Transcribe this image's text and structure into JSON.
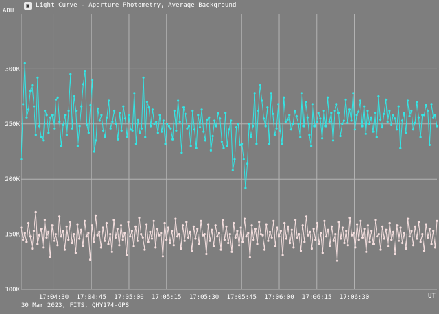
{
  "window": {
    "title": "Light Curve - Aperture Photometry, Average Background",
    "icon": "light-curve-app-icon",
    "icon_glyph": "▣"
  },
  "footer": {
    "caption": "30 Mar 2023, FITS, QHY174-GPS"
  },
  "colors": {
    "background": "#7e7e7e",
    "grid": "#b4b4b4",
    "series_target": "#33e6e6",
    "series_comparison": "#f4dede"
  },
  "chart_data": {
    "type": "line",
    "title": "Light Curve - Aperture Photometry, Average Background",
    "ylabel": "ADU",
    "xlabel": "UT",
    "ylim": [
      100000,
      350000
    ],
    "y_ticks": [
      {
        "value": 100000,
        "label": "100K"
      },
      {
        "value": 150000,
        "label": "150K"
      },
      {
        "value": 200000,
        "label": "200K"
      },
      {
        "value": 250000,
        "label": "250K"
      },
      {
        "value": 300000,
        "label": "300K"
      }
    ],
    "x_range": [
      "17:04:17",
      "17:07:03"
    ],
    "x_ticks": [
      "17:04:30",
      "17:04:45",
      "17:05:00",
      "17:05:15",
      "17:05:30",
      "17:05:45",
      "17:06:00",
      "17:06:15",
      "17:06:30"
    ],
    "grid": true,
    "legend": "none",
    "series": [
      {
        "color": "#33e6e6",
        "values": [
          218000,
          268000,
          305000,
          256000,
          263000,
          280000,
          285000,
          266000,
          240000,
          292000,
          248000,
          238000,
          235000,
          262000,
          258000,
          242000,
          256000,
          258000,
          246000,
          272000,
          274000,
          252000,
          230000,
          249000,
          258000,
          240000,
          262000,
          295000,
          246000,
          275000,
          262000,
          230000,
          248000,
          266000,
          286000,
          298000,
          249000,
          242000,
          267000,
          290000,
          225000,
          235000,
          264000,
          253000,
          258000,
          244000,
          238000,
          256000,
          271000,
          246000,
          252000,
          262000,
          250000,
          236000,
          260000,
          244000,
          266000,
          255000,
          238000,
          258000,
          245000,
          244000,
          278000,
          232000,
          254000,
          242000,
          246000,
          292000,
          238000,
          270000,
          265000,
          248000,
          263000,
          250000,
          252000,
          242000,
          258000,
          243000,
          253000,
          232000,
          250000,
          248000,
          246000,
          236000,
          262000,
          244000,
          271000,
          252000,
          224000,
          265000,
          259000,
          246000,
          248000,
          230000,
          262000,
          245000,
          228000,
          258000,
          247000,
          263000,
          243000,
          235000,
          254000,
          256000,
          226000,
          239000,
          253000,
          248000,
          260000,
          255000,
          234000,
          228000,
          260000,
          230000,
          245000,
          253000,
          208000,
          218000,
          247000,
          250000,
          231000,
          232000,
          218000,
          192000,
          214000,
          250000,
          238000,
          248000,
          278000,
          232000,
          262000,
          285000,
          271000,
          255000,
          248000,
          265000,
          232000,
          278000,
          259000,
          240000,
          246000,
          268000,
          244000,
          232000,
          274000,
          252000,
          254000,
          258000,
          245000,
          250000,
          262000,
          257000,
          250000,
          238000,
          278000,
          248000,
          270000,
          256000,
          240000,
          230000,
          268000,
          248000,
          252000,
          260000,
          255000,
          237000,
          262000,
          248000,
          274000,
          252000,
          260000,
          235000,
          262000,
          268000,
          260000,
          239000,
          250000,
          253000,
          272000,
          251000,
          263000,
          253000,
          278000,
          245000,
          258000,
          261000,
          271000,
          248000,
          266000,
          241000,
          262000,
          250000,
          256000,
          243000,
          260000,
          238000,
          275000,
          254000,
          247000,
          259000,
          272000,
          252000,
          262000,
          249000,
          258000,
          255000,
          245000,
          266000,
          228000,
          253000,
          260000,
          242000,
          271000,
          257000,
          262000,
          245000,
          251000,
          270000,
          256000,
          238000,
          258000,
          258000,
          267000,
          262000,
          231000,
          268000,
          256000,
          258000,
          248000
        ]
      },
      {
        "color": "#f4dede",
        "values": [
          156000,
          145000,
          151000,
          143000,
          160000,
          148000,
          137000,
          153000,
          170000,
          141000,
          149000,
          155000,
          138000,
          163000,
          147000,
          152000,
          129000,
          158000,
          144000,
          150000,
          140000,
          166000,
          148000,
          153000,
          136000,
          157000,
          145000,
          161000,
          142000,
          150000,
          133000,
          159000,
          146000,
          154000,
          139000,
          162000,
          148000,
          151000,
          127000,
          158000,
          143000,
          167000,
          149000,
          152000,
          138000,
          156000,
          144000,
          160000,
          141000,
          150000,
          134000,
          163000,
          147000,
          155000,
          140000,
          158000,
          145000,
          151000,
          131000,
          161000,
          148000,
          153000,
          139000,
          157000,
          144000,
          165000,
          150000,
          147000,
          136000,
          159000,
          143000,
          152000,
          146000,
          162000,
          138000,
          155000,
          149000,
          151000,
          130000,
          160000,
          145000,
          156000,
          142000,
          153000,
          140000,
          164000,
          148000,
          150000,
          137000,
          158000,
          144000,
          161000,
          147000,
          152000,
          135000,
          157000,
          146000,
          155000,
          141000,
          162000,
          149000,
          150000,
          132000,
          159000,
          144000,
          154000,
          139000,
          158000,
          148000,
          151000,
          136000,
          163000,
          145000,
          157000,
          142000,
          150000,
          134000,
          160000,
          147000,
          153000,
          140000,
          156000,
          143000,
          164000,
          148000,
          151000,
          129000,
          158000,
          145000,
          155000,
          141000,
          161000,
          150000,
          149000,
          136000,
          159000,
          144000,
          152000,
          147000,
          162000,
          139000,
          156000,
          148000,
          153000,
          131000,
          160000,
          146000,
          157000,
          142000,
          154000,
          138000,
          163000,
          147000,
          150000,
          135000,
          158000,
          143000,
          166000,
          149000,
          152000,
          137000,
          155000,
          145000,
          160000,
          141000,
          151000,
          133000,
          162000,
          148000,
          154000,
          139000,
          157000,
          144000,
          150000,
          126000,
          161000,
          146000,
          156000,
          142000,
          153000,
          140000,
          165000,
          149000,
          151000,
          138000,
          159000,
          145000,
          162000,
          147000,
          155000,
          134000,
          158000,
          143000,
          153000,
          141000,
          163000,
          148000,
          150000,
          136000,
          157000,
          146000,
          154000,
          139000,
          160000,
          145000,
          152000,
          132000,
          158000,
          144000,
          156000,
          142000,
          151000,
          137000,
          164000,
          148000,
          153000,
          140000,
          157000,
          146000,
          161000,
          143000,
          150000,
          135000,
          159000,
          147000,
          155000,
          141000,
          153000,
          138000,
          162000
        ]
      }
    ]
  }
}
